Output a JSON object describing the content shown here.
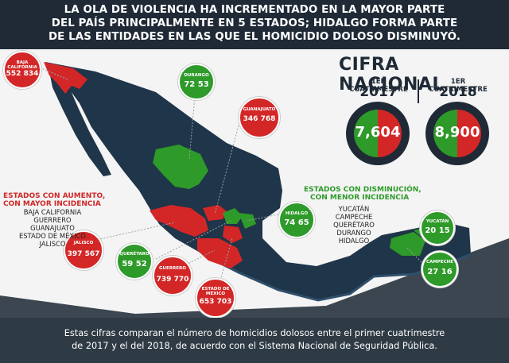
{
  "header": {
    "lines": [
      "LA OLA DE VIOLENCIA HA INCREMENTADO EN LA MAYOR PARTE",
      "DEL PAÍS PRINCIPALMENTE EN 5 ESTADOS; HIDALGO FORMA PARTE",
      "DE LAS ENTIDADES EN LAS QUE EL HOMICIDIO DOLOSO DISMINUYÓ."
    ]
  },
  "national": {
    "title": "CIFRA NACIONAL",
    "period_label": "1ER CUATRIMESTRE",
    "year_2017": "2017",
    "year_2018": "2018",
    "value_2017": "7,604",
    "value_2018": "8,900"
  },
  "increase_legend": {
    "title_line1": "ESTADOS CON AUMENTO,",
    "title_line2": "CON MAYOR INCIDENCIA",
    "items": [
      "BAJA CALIFORNIA",
      "GUERRERO",
      "GUANAJUATO",
      "ESTADO DE MÉXICO",
      "JALISCO"
    ]
  },
  "decrease_legend": {
    "title_line1": "ESTADOS CON DISMINUCIÓN,",
    "title_line2": "CON MENOR INCIDENCIA",
    "items": [
      "YUCATÁN",
      "CAMPECHE",
      "QUERÉTARO",
      "DURANGO",
      "HIDALGO"
    ]
  },
  "states": {
    "baja_california": {
      "name": "BAJA CALIFORNIA",
      "v2017": "552",
      "v2018": "834"
    },
    "durango": {
      "name": "DURANGO",
      "v2017": "72",
      "v2018": "53"
    },
    "guanajuato": {
      "name": "GUANAJUATO",
      "v2017": "346",
      "v2018": "768"
    },
    "jalisco": {
      "name": "JALISCO",
      "v2017": "397",
      "v2018": "567"
    },
    "queretaro": {
      "name": "QUERÉTARO",
      "v2017": "59",
      "v2018": "52"
    },
    "guerrero": {
      "name": "GUERRERO",
      "v2017": "739",
      "v2018": "770"
    },
    "estado_de_mexico": {
      "name": "ESTADO DE MÉXICO",
      "v2017": "653",
      "v2018": "703"
    },
    "hidalgo": {
      "name": "HIDALGO",
      "v2017": "74",
      "v2018": "65"
    },
    "yucatan": {
      "name": "YUCATÁN",
      "v2017": "20",
      "v2018": "15"
    },
    "campeche": {
      "name": "CAMPECHE",
      "v2017": "27",
      "v2018": "16"
    }
  },
  "colors": {
    "increase": "#d32727",
    "decrease": "#2e9a2a",
    "map": "#1f3549",
    "header": "#1f2a36"
  },
  "footer": {
    "line1": "Estas cifras comparan el número de homicidios dolosos entre el primer cuatrimestre",
    "line2": "de 2017 y el del 2018, de acuerdo con el Sistema Nacional de Seguridad Pública."
  }
}
